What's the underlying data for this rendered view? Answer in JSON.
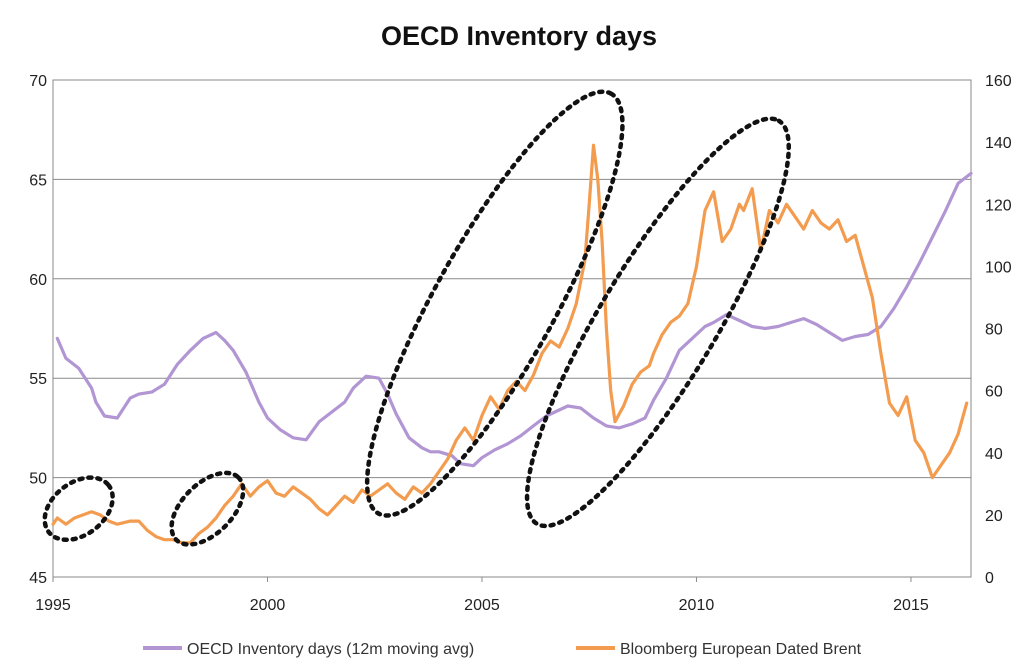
{
  "chart_data": {
    "type": "line",
    "title": "OECD Inventory days",
    "x_axis": {
      "range": [
        1995,
        2016.4
      ],
      "ticks": [
        1995,
        2000,
        2005,
        2010,
        2015
      ],
      "tick_labels": [
        "1995",
        "2000",
        "2005",
        "2010",
        "2015"
      ]
    },
    "y_left": {
      "range": [
        45,
        70
      ],
      "ticks": [
        45,
        50,
        55,
        60,
        65,
        70
      ],
      "tick_labels": [
        "45",
        "50",
        "55",
        "60",
        "65",
        "70"
      ]
    },
    "y_right": {
      "range": [
        0,
        160
      ],
      "ticks": [
        0,
        20,
        40,
        60,
        80,
        100,
        120,
        140,
        160
      ],
      "tick_labels": [
        "0",
        "20",
        "40",
        "60",
        "80",
        "100",
        "120",
        "140",
        "160"
      ]
    },
    "gridlines": "horizontal",
    "legend_position": "bottom",
    "series": [
      {
        "name": "OECD Inventory days (12m moving avg)",
        "axis": "left",
        "color": "#b196d3",
        "x": [
          1995.1,
          1995.3,
          1995.6,
          1995.9,
          1996.0,
          1996.2,
          1996.5,
          1996.8,
          1997.0,
          1997.3,
          1997.6,
          1997.9,
          1998.2,
          1998.5,
          1998.8,
          1999.0,
          1999.2,
          1999.5,
          1999.8,
          2000.0,
          2000.3,
          2000.6,
          2000.9,
          2001.2,
          2001.5,
          2001.8,
          2002.0,
          2002.3,
          2002.6,
          2002.8,
          2003.0,
          2003.3,
          2003.6,
          2003.8,
          2004.0,
          2004.3,
          2004.5,
          2004.8,
          2005.0,
          2005.3,
          2005.6,
          2005.9,
          2006.2,
          2006.5,
          2006.8,
          2007.0,
          2007.3,
          2007.6,
          2007.9,
          2008.2,
          2008.5,
          2008.8,
          2009.0,
          2009.3,
          2009.6,
          2009.9,
          2010.2,
          2010.4,
          2010.7,
          2011.0,
          2011.3,
          2011.6,
          2011.9,
          2012.2,
          2012.5,
          2012.8,
          2013.1,
          2013.4,
          2013.7,
          2014.0,
          2014.3,
          2014.6,
          2014.9,
          2015.2,
          2015.5,
          2015.8,
          2016.1,
          2016.4
        ],
        "values": [
          57.0,
          56.0,
          55.5,
          54.5,
          53.8,
          53.1,
          53.0,
          54.0,
          54.2,
          54.3,
          54.7,
          55.7,
          56.4,
          57.0,
          57.3,
          56.9,
          56.4,
          55.3,
          53.8,
          53.0,
          52.4,
          52.0,
          51.9,
          52.8,
          53.3,
          53.8,
          54.5,
          55.1,
          55.0,
          54.2,
          53.2,
          52.0,
          51.5,
          51.3,
          51.3,
          51.1,
          50.7,
          50.6,
          51.0,
          51.4,
          51.7,
          52.1,
          52.6,
          53.1,
          53.4,
          53.6,
          53.5,
          53.0,
          52.6,
          52.5,
          52.7,
          53.0,
          53.9,
          55.0,
          56.4,
          57.0,
          57.6,
          57.8,
          58.2,
          57.9,
          57.6,
          57.5,
          57.6,
          57.8,
          58.0,
          57.7,
          57.3,
          56.9,
          57.1,
          57.2,
          57.6,
          58.5,
          59.6,
          60.8,
          62.1,
          63.4,
          64.8,
          65.3
        ]
      },
      {
        "name": "Bloomberg European Dated Brent",
        "axis": "right",
        "color": "#f39c4f",
        "x": [
          1995.0,
          1995.1,
          1995.3,
          1995.5,
          1995.7,
          1995.9,
          1996.1,
          1996.3,
          1996.5,
          1996.8,
          1997.0,
          1997.2,
          1997.4,
          1997.6,
          1997.8,
          1998.0,
          1998.2,
          1998.4,
          1998.6,
          1998.8,
          1999.0,
          1999.2,
          1999.4,
          1999.6,
          1999.8,
          2000.0,
          2000.2,
          2000.4,
          2000.6,
          2000.8,
          2001.0,
          2001.2,
          2001.4,
          2001.6,
          2001.8,
          2002.0,
          2002.2,
          2002.4,
          2002.6,
          2002.8,
          2003.0,
          2003.2,
          2003.4,
          2003.6,
          2003.8,
          2004.0,
          2004.2,
          2004.4,
          2004.6,
          2004.8,
          2005.0,
          2005.2,
          2005.4,
          2005.6,
          2005.8,
          2006.0,
          2006.2,
          2006.4,
          2006.6,
          2006.8,
          2007.0,
          2007.2,
          2007.4,
          2007.5,
          2007.6,
          2007.7,
          2007.8,
          2007.9,
          2008.0,
          2008.1,
          2008.3,
          2008.5,
          2008.7,
          2008.9,
          2009.0,
          2009.2,
          2009.4,
          2009.6,
          2009.8,
          2010.0,
          2010.2,
          2010.4,
          2010.6,
          2010.8,
          2011.0,
          2011.1,
          2011.3,
          2011.5,
          2011.7,
          2011.9,
          2012.1,
          2012.3,
          2012.5,
          2012.7,
          2012.9,
          2013.1,
          2013.3,
          2013.5,
          2013.7,
          2013.9,
          2014.1,
          2014.3,
          2014.5,
          2014.7,
          2014.9,
          2015.1,
          2015.3,
          2015.5,
          2015.7,
          2015.9,
          2016.1,
          2016.3
        ],
        "values": [
          17,
          19,
          17,
          19,
          20,
          21,
          20,
          18,
          17,
          18,
          18,
          15,
          13,
          12,
          12,
          11,
          11,
          14,
          16,
          19,
          23,
          26,
          30,
          26,
          29,
          31,
          27,
          26,
          29,
          27,
          25,
          22,
          20,
          23,
          26,
          24,
          28,
          26,
          28,
          30,
          27,
          25,
          29,
          27,
          30,
          34,
          38,
          44,
          48,
          44,
          52,
          58,
          54,
          60,
          63,
          60,
          65,
          72,
          76,
          74,
          80,
          88,
          102,
          120,
          139,
          128,
          108,
          80,
          60,
          50,
          55,
          62,
          66,
          68,
          72,
          78,
          82,
          84,
          88,
          100,
          118,
          124,
          108,
          112,
          120,
          118,
          125,
          105,
          118,
          114,
          120,
          116,
          112,
          118,
          114,
          112,
          115,
          108,
          110,
          100,
          90,
          72,
          56,
          52,
          58,
          44,
          40,
          32,
          36,
          40,
          46,
          56
        ]
      }
    ],
    "annotations": [
      {
        "type": "dotted-ellipse",
        "center_year": 1995.6,
        "center_brent": 22,
        "spans_years": [
          1995.0,
          1996.3
        ]
      },
      {
        "type": "dotted-ellipse",
        "center_year": 1998.6,
        "center_brent": 22,
        "spans_years": [
          1997.8,
          1999.5
        ]
      },
      {
        "type": "dotted-ellipse",
        "center_year": 2005.3,
        "center_brent": 88,
        "spans_years": [
          2002.9,
          2007.7
        ]
      },
      {
        "type": "dotted-ellipse",
        "center_year": 2009.1,
        "center_brent": 82,
        "spans_years": [
          2006.5,
          2011.6
        ]
      }
    ]
  }
}
